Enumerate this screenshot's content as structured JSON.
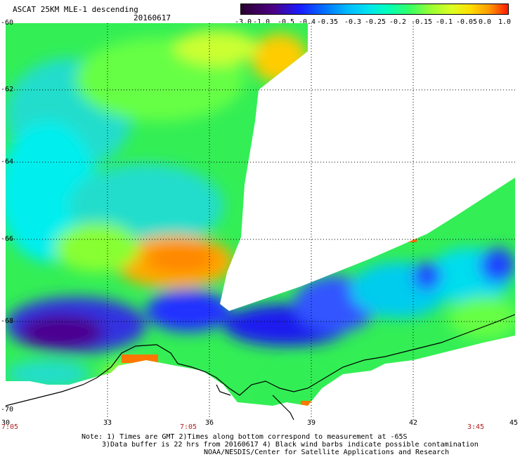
{
  "header": {
    "title": "ASCAT 25KM MLE-1 descending",
    "date": "20160617"
  },
  "colorbar": {
    "labels": [
      "-3.0",
      "-1.0",
      "-0.5",
      "-0.4",
      "-0.35",
      "-0.3",
      "-0.25",
      "-0.2",
      "-0.15",
      "-0.1",
      "-0.05",
      "0.0",
      "1.0"
    ],
    "colors": [
      "#2a0030",
      "#4b0082",
      "#1a1aff",
      "#0066ff",
      "#00aaff",
      "#00e5ee",
      "#00ffbb",
      "#33ff66",
      "#99ff33",
      "#ddff22",
      "#ffdd00",
      "#ff9900",
      "#ff2200"
    ]
  },
  "axes": {
    "lat_labels": [
      "-60",
      "-62",
      "-64",
      "-66",
      "-68",
      "-70"
    ],
    "lon_labels": [
      "30",
      "33",
      "36",
      "39",
      "42",
      "45"
    ],
    "time_labels": [
      "7:05",
      "7:05",
      "3:45"
    ]
  },
  "notes": {
    "line1": "Note: 1) Times are GMT 2)Times along bottom correspond to measurement at -65S",
    "line2": "3)Data buffer is 22 hrs from 20160617 4) Black wind barbs indicate possible contamination",
    "credit": "NOAA/NESDIS/Center for Satellite Applications and Research"
  }
}
